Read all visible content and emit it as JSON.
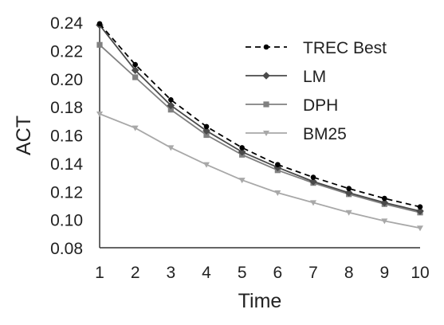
{
  "chart_data": {
    "type": "line",
    "title": "",
    "xlabel": "Time",
    "ylabel": "ACT",
    "x": [
      1,
      2,
      3,
      4,
      5,
      6,
      7,
      8,
      9,
      10
    ],
    "xlim": [
      1,
      10
    ],
    "ylim": [
      0.08,
      0.24
    ],
    "yticks": [
      "0.08",
      "0.10",
      "0.12",
      "0.14",
      "0.16",
      "0.18",
      "0.20",
      "0.22",
      "0.24"
    ],
    "xticks": [
      "1",
      "2",
      "3",
      "4",
      "5",
      "6",
      "7",
      "8",
      "9",
      "10"
    ],
    "grid": false,
    "legend_position": "top-right",
    "series": [
      {
        "name": "TREC Best",
        "values": [
          0.239,
          0.21,
          0.185,
          0.166,
          0.151,
          0.139,
          0.13,
          0.122,
          0.115,
          0.109
        ],
        "color": "#000000",
        "marker": "circle",
        "dash": true
      },
      {
        "name": "LM",
        "values": [
          0.238,
          0.206,
          0.181,
          0.163,
          0.148,
          0.137,
          0.127,
          0.119,
          0.112,
          0.106
        ],
        "color": "#4a4a4a",
        "marker": "diamond",
        "dash": false
      },
      {
        "name": "DPH",
        "values": [
          0.224,
          0.201,
          0.178,
          0.16,
          0.146,
          0.135,
          0.126,
          0.118,
          0.111,
          0.105
        ],
        "color": "#808080",
        "marker": "square",
        "dash": false
      },
      {
        "name": "BM25",
        "values": [
          0.175,
          0.165,
          0.151,
          0.139,
          0.128,
          0.119,
          0.112,
          0.105,
          0.099,
          0.094
        ],
        "color": "#a8a8a8",
        "marker": "triangle-down",
        "dash": false
      }
    ]
  }
}
